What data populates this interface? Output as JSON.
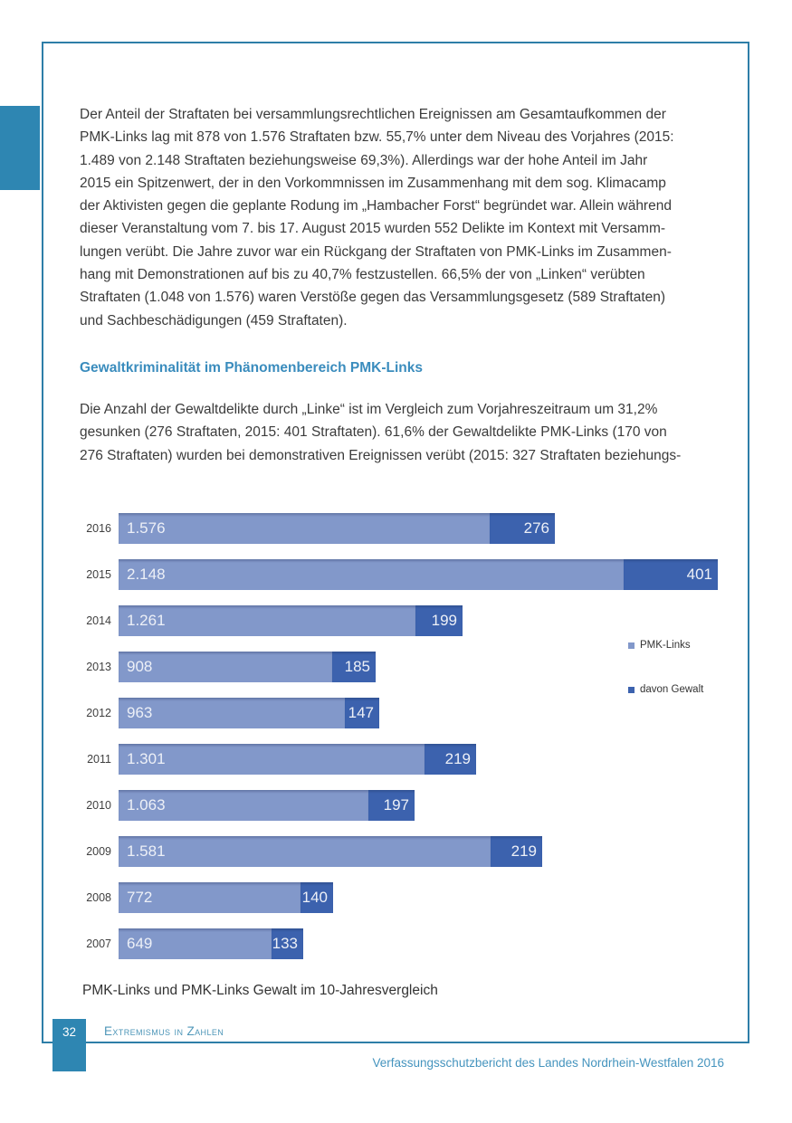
{
  "page": {
    "number": "32",
    "footer_section": "Extremismus in Zahlen",
    "footer_right": "Verfassungsschutzbericht des Landes Nordrhein-Westfalen 2016"
  },
  "content": {
    "para1": "Der Anteil der Straftaten bei versammlungsrechtlichen Ereignissen am Gesamtaufkommen der\nPMK-Links lag mit 878 von 1.576 Straftaten bzw. 55,7% unter dem Niveau des Vorjahres (2015:\n1.489 von 2.148 Straftaten beziehungsweise 69,3%). Allerdings war der hohe Anteil im Jahr\n2015 ein Spitzenwert, der in den Vorkommnissen im Zusammenhang mit dem sog. Klimacamp\nder Aktivisten gegen die geplante Rodung im „Hambacher Forst“ begründet war. Allein während\ndieser Veranstaltung vom 7. bis 17. August 2015 wurden 552 Delikte im Kontext mit Versamm-\nlungen verübt. Die Jahre zuvor war ein Rückgang der Straftaten von PMK-Links im Zusammen-\nhang mit Demonstrationen auf bis zu 40,7% festzustellen. 66,5% der von „Linken“ verübten\nStraftaten (1.048 von 1.576) waren Verstöße gegen das Versammlungsgesetz (589 Straftaten)\nund Sachbeschädigungen (459 Straftaten).",
    "heading": "Gewaltkriminalität im Phänomenbereich PMK-Links",
    "para2": "Die Anzahl der Gewaltdelikte durch „Linke“ ist im Vergleich zum Vorjahreszeitraum um 31,2%\ngesunken (276 Straftaten, 2015: 401 Straftaten). 61,6% der Gewaltdelikte PMK-Links (170 von\n276 Straftaten) wurden bei demonstrativen Ereignissen verübt (2015: 327 Straftaten beziehungs-",
    "caption": "PMK-Links und PMK-Links Gewalt im 10-Jahresvergleich"
  },
  "chart_data": {
    "type": "bar",
    "orientation": "horizontal-stacked",
    "title": "PMK-Links und PMK-Links Gewalt im 10-Jahresvergleich",
    "categories": [
      "2016",
      "2015",
      "2014",
      "2013",
      "2012",
      "2011",
      "2010",
      "2009",
      "2008",
      "2007"
    ],
    "series": [
      {
        "name": "PMK-Links",
        "color": "#8298ca",
        "values": [
          1576,
          2148,
          1261,
          908,
          963,
          1301,
          1063,
          1581,
          772,
          649
        ],
        "labels": [
          "1.576",
          "2.148",
          "1.261",
          "908",
          "963",
          "1.301",
          "1.063",
          "1.581",
          "772",
          "649"
        ]
      },
      {
        "name": "davon Gewalt",
        "color": "#3c62ae",
        "values": [
          276,
          401,
          199,
          185,
          147,
          219,
          197,
          219,
          140,
          133
        ],
        "labels": [
          "276",
          "401",
          "199",
          "185",
          "147",
          "219",
          "197",
          "219",
          "140",
          "133"
        ]
      }
    ],
    "legend": [
      "PMK-Links",
      "davon Gewalt"
    ],
    "legend_position": "right",
    "xlim": [
      0,
      2560
    ],
    "grid": false,
    "axis_labels_shown": false
  },
  "colors": {
    "frame_border": "#2e7ea8",
    "accent_blue": "#2e86b2",
    "heading_blue": "#3a8cbd",
    "footer_blue": "#4594be",
    "bar_light": "#8298ca",
    "bar_dark": "#3c62ae",
    "body_text": "#3b3b3b"
  }
}
